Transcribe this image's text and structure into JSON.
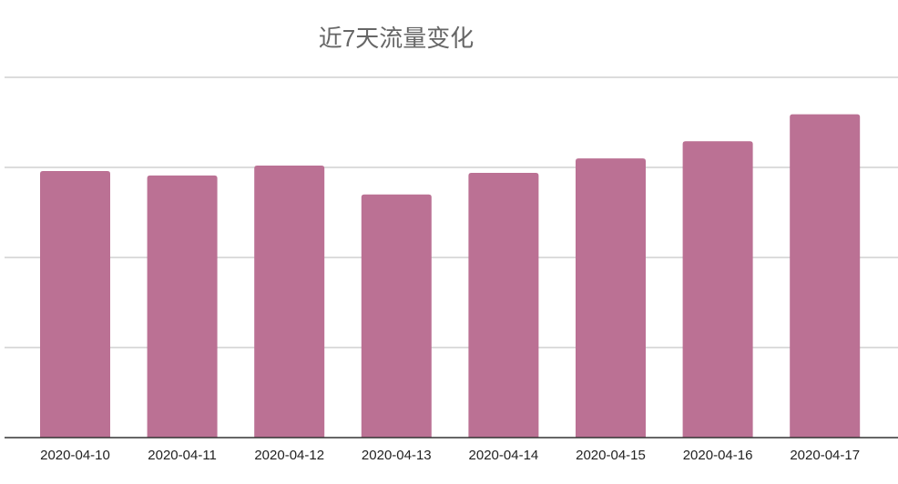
{
  "chart_data": {
    "type": "bar",
    "title": "近7天流量变化",
    "xlabel": "",
    "ylabel": "",
    "categories": [
      "2020-04-10",
      "2020-04-11",
      "2020-04-12",
      "2020-04-13",
      "2020-04-14",
      "2020-04-15",
      "2020-04-16",
      "2020-04-17"
    ],
    "values": [
      2.96,
      2.91,
      3.02,
      2.7,
      2.94,
      3.1,
      3.29,
      3.59
    ],
    "ylim": [
      0,
      4
    ],
    "y_tick_labels_shown": false,
    "grid": true,
    "bar_color": "#bb7194",
    "grid_color": "#d0d0d0",
    "axis_color": "#333333"
  }
}
